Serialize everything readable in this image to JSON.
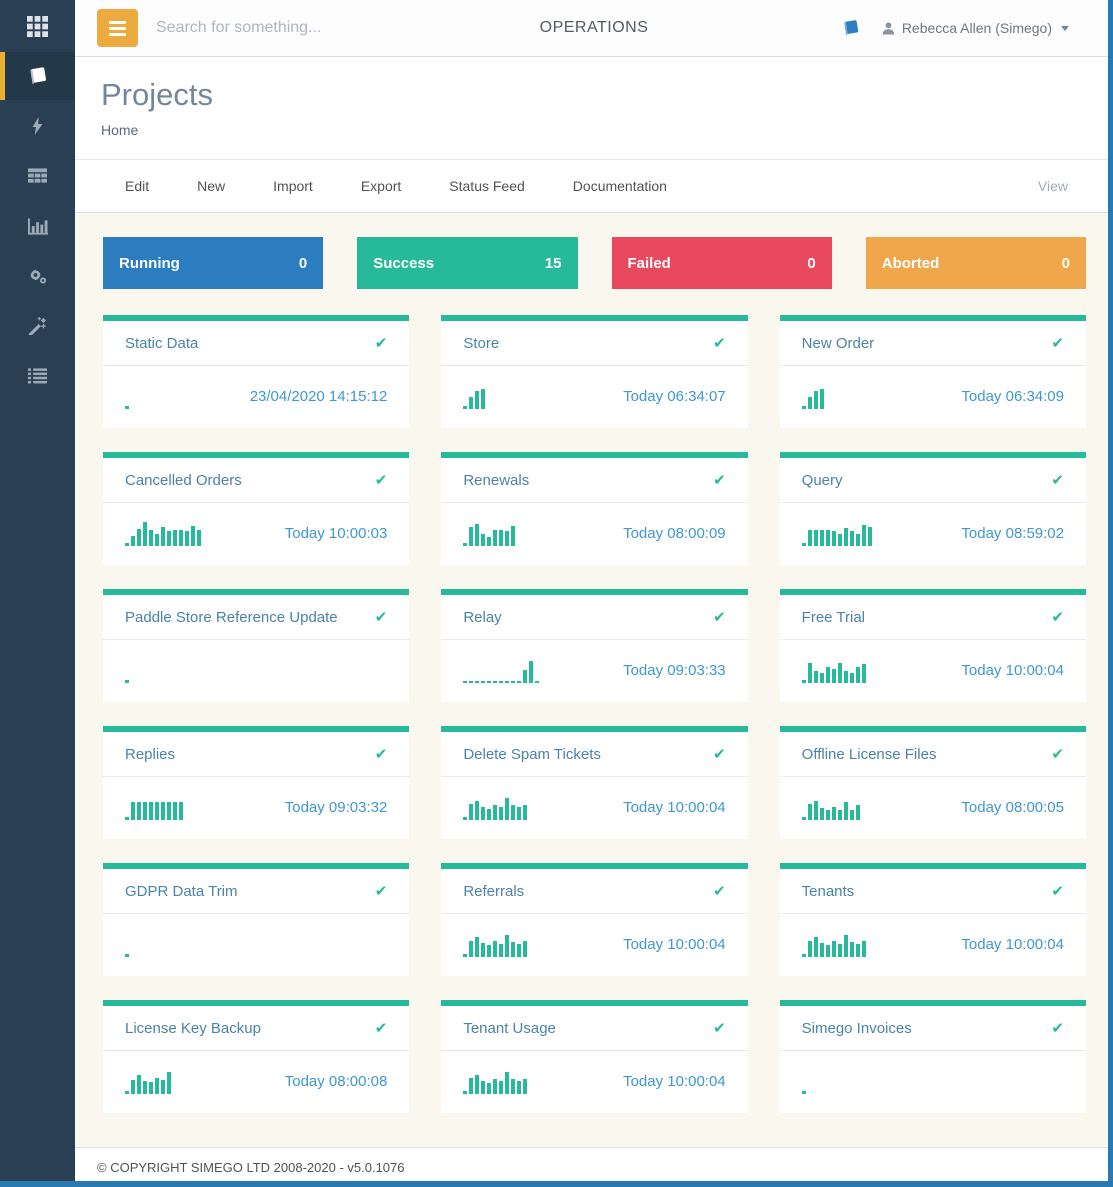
{
  "colors": {
    "sidebar_bg": "#2A3F54",
    "sidebar_active_accent": "#E9B12E",
    "hamburger_orange": "#ECAA3F",
    "card_accent_green": "#26B99A",
    "timestamp_blue": "#3F97D3",
    "edge_strip_blue": "#2878B2",
    "running": "#2B7DBF",
    "success": "#26B99A",
    "failed": "#E8495F",
    "aborted": "#F0A64A"
  },
  "sidebar": {
    "logo_icon": "app-grid-icon",
    "items": [
      {
        "icon": "book-icon",
        "active": true
      },
      {
        "icon": "bolt-icon",
        "active": false
      },
      {
        "icon": "table-icon",
        "active": false
      },
      {
        "icon": "bar-chart-icon",
        "active": false
      },
      {
        "icon": "gears-icon",
        "active": false
      },
      {
        "icon": "magic-wand-icon",
        "active": false
      },
      {
        "icon": "list-icon",
        "active": false
      }
    ]
  },
  "topbar": {
    "search_placeholder": "Search for something...",
    "title": "OPERATIONS",
    "user_label": "Rebecca Allen (Simego)"
  },
  "page": {
    "title": "Projects",
    "breadcrumb": "Home"
  },
  "menu": {
    "items": [
      "Edit",
      "New",
      "Import",
      "Export",
      "Status Feed",
      "Documentation"
    ],
    "view_label": "View"
  },
  "status_tiles": [
    {
      "label": "Running",
      "count": "0",
      "color": "#2B7DBF"
    },
    {
      "label": "Success",
      "count": "15",
      "color": "#26B99A"
    },
    {
      "label": "Failed",
      "count": "0",
      "color": "#E8495F"
    },
    {
      "label": "Aborted",
      "count": "0",
      "color": "#F0A64A"
    }
  ],
  "check_glyph": "✔",
  "projects": [
    {
      "name": "Static Data",
      "timestamp": "23/04/2020 14:15:12",
      "spark": [
        3
      ]
    },
    {
      "name": "Store",
      "timestamp": "Today 06:34:07",
      "spark": [
        3,
        12,
        18,
        20
      ]
    },
    {
      "name": "New Order",
      "timestamp": "Today 06:34:09",
      "spark": [
        3,
        12,
        18,
        20
      ]
    },
    {
      "name": "Cancelled Orders",
      "timestamp": "Today 10:00:03",
      "spark": [
        3,
        10,
        17,
        24,
        16,
        12,
        19,
        15,
        16,
        16,
        15,
        20,
        16
      ]
    },
    {
      "name": "Renewals",
      "timestamp": "Today 08:00:09",
      "spark": [
        3,
        19,
        22,
        12,
        9,
        16,
        16,
        15,
        20
      ]
    },
    {
      "name": "Query",
      "timestamp": "Today 08:59:02",
      "spark": [
        3,
        16,
        16,
        16,
        16,
        15,
        12,
        18,
        15,
        12,
        21,
        19
      ]
    },
    {
      "name": "Paddle Store Reference Update",
      "timestamp": "",
      "spark": [
        3
      ]
    },
    {
      "name": "Relay",
      "timestamp": "Today 09:03:33",
      "spark": [
        2,
        2,
        2,
        2,
        2,
        2,
        2,
        2,
        2,
        2,
        13,
        22,
        2
      ]
    },
    {
      "name": "Free Trial",
      "timestamp": "Today 10:00:04",
      "spark": [
        3,
        20,
        12,
        10,
        16,
        14,
        20,
        12,
        10,
        16,
        19
      ]
    },
    {
      "name": "Replies",
      "timestamp": "Today 09:03:32",
      "spark": [
        3,
        18,
        18,
        18,
        18,
        18,
        18,
        18,
        18,
        18
      ]
    },
    {
      "name": "Delete Spam Tickets",
      "timestamp": "Today 10:00:04",
      "spark": [
        3,
        16,
        19,
        13,
        11,
        15,
        13,
        22,
        15,
        13,
        15
      ]
    },
    {
      "name": "Offline License Files",
      "timestamp": "Today 08:00:05",
      "spark": [
        3,
        16,
        19,
        12,
        10,
        13,
        10,
        18,
        10,
        15
      ]
    },
    {
      "name": "GDPR Data Trim",
      "timestamp": "",
      "spark": [
        3
      ]
    },
    {
      "name": "Referrals",
      "timestamp": "Today 10:00:04",
      "spark": [
        3,
        16,
        20,
        14,
        12,
        16,
        13,
        22,
        15,
        13,
        16
      ]
    },
    {
      "name": "Tenants",
      "timestamp": "Today 10:00:04",
      "spark": [
        3,
        16,
        20,
        14,
        12,
        16,
        13,
        22,
        15,
        13,
        16
      ]
    },
    {
      "name": "License Key Backup",
      "timestamp": "Today 08:00:08",
      "spark": [
        3,
        14,
        19,
        13,
        12,
        16,
        14,
        22
      ]
    },
    {
      "name": "Tenant Usage",
      "timestamp": "Today 10:00:04",
      "spark": [
        3,
        16,
        19,
        13,
        11,
        15,
        13,
        22,
        15,
        13,
        15
      ]
    },
    {
      "name": "Simego Invoices",
      "timestamp": "",
      "spark": [
        3
      ]
    }
  ],
  "footer": {
    "copyright": "© COPYRIGHT SIMEGO LTD 2008-2020 - v5.0.1076"
  }
}
